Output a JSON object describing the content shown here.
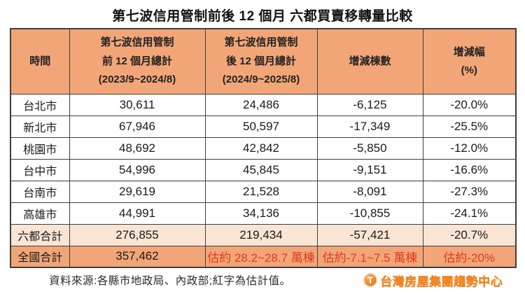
{
  "title": "第七波信用管制前後 12 個月 六都買賣移轉量比較",
  "table": {
    "headers": [
      {
        "text": "時間"
      },
      {
        "text": "第七波信用管制\n前 12 個月總計\n(2023/9~2024/8)"
      },
      {
        "text": "第七波信用管制\n後 12 個月總計\n(2024/9~2025/8)"
      },
      {
        "text": "增減棟數"
      },
      {
        "text": "增減幅\n(%)"
      }
    ],
    "rows": [
      {
        "label": "台北市",
        "type": "city",
        "cells": [
          "30,611",
          "24,486",
          "-6,125",
          "-20.0%"
        ],
        "red_cells": []
      },
      {
        "label": "新北市",
        "type": "city",
        "cells": [
          "67,946",
          "50,597",
          "-17,349",
          "-25.5%"
        ],
        "red_cells": []
      },
      {
        "label": "桃園市",
        "type": "city",
        "cells": [
          "48,692",
          "42,842",
          "-5,850",
          "-12.0%"
        ],
        "red_cells": []
      },
      {
        "label": "台中市",
        "type": "city",
        "cells": [
          "54,996",
          "45,845",
          "-9,151",
          "-16.6%"
        ],
        "red_cells": []
      },
      {
        "label": "台南市",
        "type": "city",
        "cells": [
          "29,619",
          "21,528",
          "-8,091",
          "-27.3%"
        ],
        "red_cells": []
      },
      {
        "label": "高雄市",
        "type": "city",
        "cells": [
          "44,991",
          "34,136",
          "-10,855",
          "-24.1%"
        ],
        "red_cells": []
      },
      {
        "label": "六都合計",
        "type": "subtotal",
        "cells": [
          "276,855",
          "219,434",
          "-57,421",
          "-20.7%"
        ],
        "red_cells": []
      },
      {
        "label": "全國合計",
        "type": "total",
        "cells": [
          "357,462",
          "估約 28.2~28.7 萬棟",
          "估約-7.1~7.5 萬棟",
          "估約-20%"
        ],
        "red_cells": [
          1,
          2,
          3
        ]
      }
    ]
  },
  "footer": {
    "source": "資料來源:各縣市地政局、內政部;紅字為估計值。",
    "logo_glyph": "T",
    "logo_text": "台灣房屋集團趨勢中心"
  },
  "colors": {
    "header_bg": "#F2A678",
    "subtotal_bg": "#FAE5D5",
    "total_bg": "#F2A678",
    "estimate_red": "#E03A1E",
    "border": "#3E3E3E",
    "logo_orange": "#F6861F"
  }
}
